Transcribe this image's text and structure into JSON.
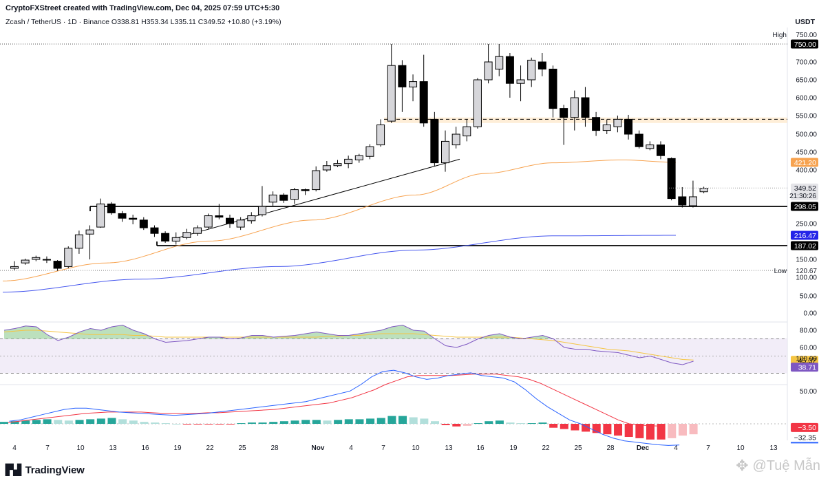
{
  "header": {
    "created_by": "CryptoFXStreet created with TradingView.com, Dec 04, 2025 07:59 UTC+5:30",
    "symbol_line": "Zcash / TetherUS · 1D · Binance  O338.81  H353.34  L335.11  C349.52  +10.80 (+3.19%)",
    "currency": "USDT"
  },
  "footer": {
    "logo": "TradingView",
    "watermark": "@Tuệ Mẫn"
  },
  "colors": {
    "up_body": "#d6d6da",
    "down_body": "#000000",
    "ma_orange": "#f7a350",
    "ma_blue": "#4455ee",
    "rsi_line": "#7e57c2",
    "rsi_ma": "#f5c542",
    "macd_line": "#2962ff",
    "signal_line": "#f23645",
    "hist_pos": "#26a69a",
    "hist_neg": "#f23645"
  },
  "chart_data": [
    {
      "type": "candlestick",
      "title": "Zcash / TetherUS · 1D · Binance",
      "x_tick_labels": [
        "4",
        "7",
        "10",
        "13",
        "16",
        "19",
        "22",
        "25",
        "28",
        "Nov",
        "4",
        "7",
        "10",
        "13",
        "16",
        "19",
        "22",
        "25",
        "28",
        "Dec",
        "4",
        "7",
        "10",
        "13"
      ],
      "y_ticks": [
        0,
        50,
        100,
        150,
        250,
        400,
        450,
        500,
        550,
        600,
        650,
        700
      ],
      "ylim": [
        0,
        760
      ],
      "price_labels": [
        {
          "label": "High",
          "value": 750.0,
          "text": "750.00"
        },
        {
          "label": "",
          "value": 750.0,
          "text": "750.00"
        },
        {
          "label": "",
          "value": 421.2,
          "text": "421.20"
        },
        {
          "label": "",
          "value": 349.52,
          "text": "349.52",
          "sub": "21:30:26"
        },
        {
          "label": "",
          "value": 298.05,
          "text": "298.05"
        },
        {
          "label": "",
          "value": 216.47,
          "text": "216.47"
        },
        {
          "label": "",
          "value": 187.02,
          "text": "187.02"
        },
        {
          "label": "Low",
          "value": 120.67,
          "text": "120.67"
        }
      ],
      "candles": [
        [
          125,
          130,
          120,
          145
        ],
        [
          140,
          148,
          135,
          152
        ],
        [
          150,
          155,
          145,
          160
        ],
        [
          148,
          150,
          140,
          158
        ],
        [
          145,
          125,
          118,
          148
        ],
        [
          130,
          180,
          125,
          185
        ],
        [
          180,
          218,
          165,
          230
        ],
        [
          220,
          232,
          150,
          245
        ],
        [
          240,
          305,
          238,
          320
        ],
        [
          305,
          280,
          275,
          310
        ],
        [
          278,
          265,
          255,
          285
        ],
        [
          265,
          262,
          248,
          275
        ],
        [
          260,
          238,
          232,
          268
        ],
        [
          238,
          222,
          212,
          245
        ],
        [
          222,
          200,
          195,
          228
        ],
        [
          200,
          210,
          190,
          225
        ],
        [
          210,
          225,
          205,
          235
        ],
        [
          222,
          238,
          215,
          245
        ],
        [
          240,
          272,
          235,
          278
        ],
        [
          272,
          268,
          262,
          305
        ],
        [
          265,
          250,
          238,
          275
        ],
        [
          240,
          260,
          232,
          268
        ],
        [
          258,
          272,
          250,
          282
        ],
        [
          275,
          298,
          270,
          355
        ],
        [
          310,
          330,
          300,
          340
        ],
        [
          330,
          315,
          308,
          335
        ],
        [
          318,
          345,
          305,
          350
        ],
        [
          345,
          342,
          330,
          348
        ],
        [
          345,
          398,
          340,
          410
        ],
        [
          400,
          412,
          395,
          425
        ],
        [
          412,
          418,
          408,
          428
        ],
        [
          418,
          430,
          405,
          440
        ],
        [
          428,
          440,
          420,
          445
        ],
        [
          438,
          465,
          430,
          472
        ],
        [
          470,
          525,
          465,
          540
        ],
        [
          535,
          690,
          530,
          750
        ],
        [
          690,
          630,
          560,
          705
        ],
        [
          630,
          645,
          590,
          665
        ],
        [
          645,
          530,
          520,
          720
        ],
        [
          540,
          420,
          410,
          560
        ],
        [
          420,
          480,
          395,
          510
        ],
        [
          470,
          500,
          460,
          520
        ],
        [
          495,
          520,
          480,
          540
        ],
        [
          520,
          650,
          515,
          655
        ],
        [
          650,
          700,
          640,
          750
        ],
        [
          680,
          715,
          660,
          750
        ],
        [
          715,
          640,
          600,
          725
        ],
        [
          640,
          650,
          590,
          690
        ],
        [
          650,
          705,
          630,
          712
        ],
        [
          700,
          680,
          660,
          725
        ],
        [
          680,
          570,
          545,
          690
        ],
        [
          570,
          545,
          470,
          580
        ],
        [
          545,
          600,
          510,
          620
        ],
        [
          600,
          545,
          520,
          630
        ],
        [
          545,
          510,
          495,
          560
        ],
        [
          510,
          525,
          500,
          540
        ],
        [
          520,
          540,
          505,
          550
        ],
        [
          540,
          500,
          485,
          552
        ],
        [
          500,
          465,
          460,
          510
        ],
        [
          460,
          470,
          455,
          480
        ],
        [
          470,
          440,
          430,
          480
        ],
        [
          432,
          320,
          315,
          435
        ],
        [
          325,
          302,
          295,
          352
        ],
        [
          300,
          325,
          295,
          370
        ],
        [
          339,
          349,
          335,
          353
        ]
      ],
      "lines": [
        {
          "name": "",
          "kind": "support",
          "value": 298.05,
          "style": "solid"
        },
        {
          "name": "",
          "kind": "support",
          "value": 187.02,
          "style": "solid"
        },
        {
          "name": "",
          "kind": "resistance_zone",
          "value_low": 530,
          "value_high": 545,
          "style": "dashed"
        }
      ]
    },
    {
      "type": "line",
      "title": "RSI",
      "y_ticks": [
        80,
        60
      ],
      "ylim": [
        20,
        105
      ],
      "price_labels": [
        {
          "value": 45.37,
          "text": "45.37"
        },
        {
          "value": 38.71,
          "text": "38.71"
        }
      ],
      "levels": [
        70,
        50,
        30
      ]
    },
    {
      "type": "histogram+line",
      "title": "MACD",
      "y_ticks": [
        100,
        50
      ],
      "ylim": [
        -45,
        120
      ],
      "price_labels": [
        {
          "value": -3.5,
          "text": "−3.50"
        },
        {
          "value": -32.35,
          "text": "−32.35"
        }
      ]
    }
  ]
}
